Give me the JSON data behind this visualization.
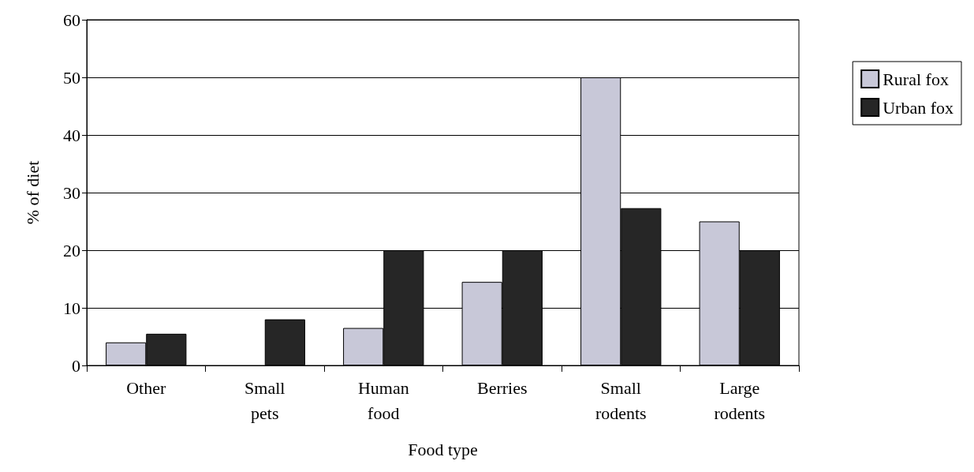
{
  "chart_data": {
    "type": "bar",
    "xlabel": "Food type",
    "ylabel": "% of diet",
    "categories": [
      "Other",
      "Small\npets",
      "Human\nfood",
      "Berries",
      "Small\nrodents",
      "Large\nrodents"
    ],
    "series": [
      {
        "name": "Rural fox",
        "color": "#c8c8d8",
        "values": [
          4,
          0,
          6.5,
          14.5,
          50,
          25
        ]
      },
      {
        "name": "Urban fox",
        "color": "#262626",
        "values": [
          5.5,
          8,
          20,
          20,
          27.3,
          20
        ]
      }
    ],
    "ylim": [
      0,
      60
    ],
    "yticks": [
      0,
      10,
      20,
      30,
      40,
      50,
      60
    ],
    "grid": "y",
    "legend": "right"
  }
}
